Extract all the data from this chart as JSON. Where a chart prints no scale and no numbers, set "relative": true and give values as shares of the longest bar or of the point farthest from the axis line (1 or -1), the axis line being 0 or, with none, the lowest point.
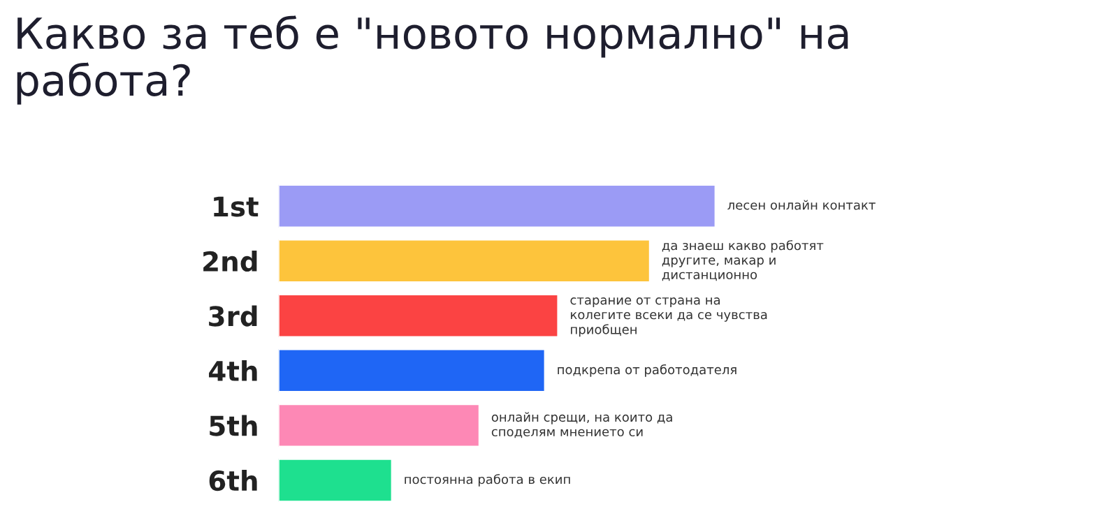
{
  "chart_data": {
    "type": "bar",
    "orientation": "horizontal",
    "relative": true,
    "title": "Какво за теб е \"новото нормално\" на\nработа?",
    "categories": [
      "1st",
      "2nd",
      "3rd",
      "4th",
      "5th",
      "6th"
    ],
    "values": [
      1,
      0.85,
      0.64,
      0.61,
      0.46,
      0.26
    ],
    "colors": [
      "#9b9bf5",
      "#fdc43c",
      "#fb4343",
      "#1f66f5",
      "#fd88b5",
      "#1ee08f"
    ],
    "annotations": [
      {
        "text": "лесен онлайн контакт",
        "x": 1,
        "y": "1st"
      },
      {
        "text": "да знаеш какво работят\nдругите, макар и\nдистанционно",
        "x": 0.85,
        "y": "2nd"
      },
      {
        "text": "старание от страна на\nколегите всеки да се чувства\nприобщен",
        "x": 0.64,
        "y": "3rd"
      },
      {
        "text": "подкрепа от работодателя",
        "x": 0.61,
        "y": "4th"
      },
      {
        "text": "онлайн срещи, на които да\nсподелям мнението си",
        "x": 0.46,
        "y": "5th"
      },
      {
        "text": "постоянна работа в екип",
        "x": 0.26,
        "y": "6th"
      }
    ],
    "grid": false,
    "legend": false
  }
}
